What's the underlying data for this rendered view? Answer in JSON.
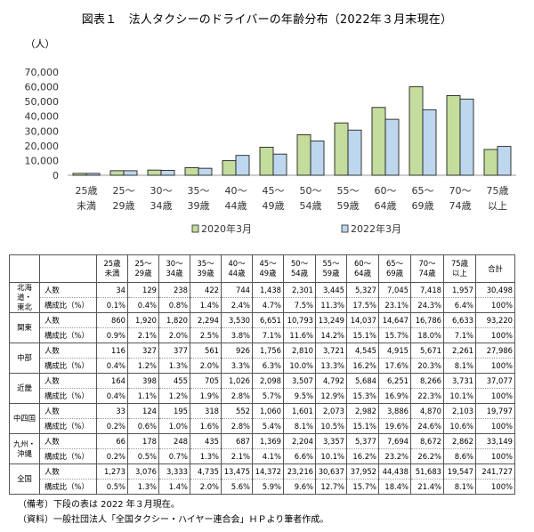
{
  "title": "図表１　法人タクシーのドライバーの年齢分布（2022年３月末現在）",
  "chart_data": {
    "type": "bar",
    "unit_label": "（人）",
    "categories": [
      [
        "25歳",
        "未満"
      ],
      [
        "25～",
        "29歳"
      ],
      [
        "30～",
        "34歳"
      ],
      [
        "35～",
        "39歳"
      ],
      [
        "40～",
        "44歳"
      ],
      [
        "45～",
        "49歳"
      ],
      [
        "50～",
        "54歳"
      ],
      [
        "55～",
        "59歳"
      ],
      [
        "60～",
        "64歳"
      ],
      [
        "65～",
        "69歳"
      ],
      [
        "70～",
        "74歳"
      ],
      [
        "75歳",
        "以上"
      ]
    ],
    "ylim": [
      0,
      70000
    ],
    "yticks": [
      "0",
      "10,000",
      "20,000",
      "30,000",
      "40,000",
      "50,000",
      "60,000",
      "70,000"
    ],
    "grid": false,
    "legend_position": "bottom",
    "series": [
      {
        "name": "2020年3月",
        "color": "#c4dc9c",
        "values": [
          1260,
          3100,
          3520,
          5200,
          9900,
          19000,
          27500,
          35500,
          46000,
          60000,
          54000,
          17500
        ]
      },
      {
        "name": "2022年3月",
        "color": "#bdd7ee",
        "values": [
          1273,
          3076,
          3333,
          4735,
          13475,
          14372,
          23216,
          30637,
          37952,
          44438,
          51683,
          19547
        ]
      }
    ]
  },
  "table": {
    "headers": [
      "",
      "",
      [
        "25歳",
        "未満"
      ],
      [
        "25～",
        "29歳"
      ],
      [
        "30～",
        "34歳"
      ],
      [
        "35～",
        "39歳"
      ],
      [
        "40～",
        "44歳"
      ],
      [
        "45～",
        "49歳"
      ],
      [
        "50～",
        "54歳"
      ],
      [
        "55～",
        "59歳"
      ],
      [
        "60～",
        "64歳"
      ],
      [
        "65～",
        "69歳"
      ],
      [
        "70～",
        "74歳"
      ],
      [
        "75歳",
        "以上"
      ],
      "合計"
    ],
    "regions": [
      {
        "name": [
          "北海道・",
          "東北"
        ],
        "count_label": "人数",
        "count": [
          "34",
          "129",
          "238",
          "422",
          "744",
          "1,438",
          "2,301",
          "3,445",
          "5,327",
          "7,045",
          "7,418",
          "1,957",
          "30,498"
        ],
        "pct_label": "構成比（%）",
        "pct": [
          "0.1%",
          "0.4%",
          "0.8%",
          "1.4%",
          "2.4%",
          "4.7%",
          "7.5%",
          "11.3%",
          "17.5%",
          "23.1%",
          "24.3%",
          "6.4%",
          "100%"
        ]
      },
      {
        "name": [
          "関東"
        ],
        "count_label": "人数",
        "count": [
          "860",
          "1,920",
          "1,820",
          "2,294",
          "3,530",
          "6,651",
          "10,793",
          "13,249",
          "14,037",
          "14,647",
          "16,786",
          "6,633",
          "93,220"
        ],
        "pct_label": "構成比（%）",
        "pct": [
          "0.9%",
          "2.1%",
          "2.0%",
          "2.5%",
          "3.8%",
          "7.1%",
          "11.6%",
          "14.2%",
          "15.1%",
          "15.7%",
          "18.0%",
          "7.1%",
          "100%"
        ]
      },
      {
        "name": [
          "中部"
        ],
        "count_label": "人数",
        "count": [
          "116",
          "327",
          "377",
          "561",
          "926",
          "1,756",
          "2,810",
          "3,721",
          "4,545",
          "4,915",
          "5,671",
          "2,261",
          "27,986"
        ],
        "pct_label": "構成比（%）",
        "pct": [
          "0.4%",
          "1.2%",
          "1.3%",
          "2.0%",
          "3.3%",
          "6.3%",
          "10.0%",
          "13.3%",
          "16.2%",
          "17.6%",
          "20.3%",
          "8.1%",
          "100%"
        ]
      },
      {
        "name": [
          "近畿"
        ],
        "count_label": "人数",
        "count": [
          "164",
          "398",
          "455",
          "705",
          "1,026",
          "2,098",
          "3,507",
          "4,792",
          "5,684",
          "6,251",
          "8,266",
          "3,731",
          "37,077"
        ],
        "pct_label": "構成比（%）",
        "pct": [
          "0.4%",
          "1.1%",
          "1.2%",
          "1.9%",
          "2.8%",
          "5.7%",
          "9.5%",
          "12.9%",
          "15.3%",
          "16.9%",
          "22.3%",
          "10.1%",
          "100%"
        ]
      },
      {
        "name": [
          "中四国"
        ],
        "count_label": "人数",
        "count": [
          "33",
          "124",
          "195",
          "318",
          "552",
          "1,060",
          "1,601",
          "2,073",
          "2,982",
          "3,886",
          "4,870",
          "2,103",
          "19,797"
        ],
        "pct_label": "構成比（%）",
        "pct": [
          "0.2%",
          "0.6%",
          "1.0%",
          "1.6%",
          "2.8%",
          "5.4%",
          "8.1%",
          "10.5%",
          "15.1%",
          "19.6%",
          "24.6%",
          "10.6%",
          "100%"
        ]
      },
      {
        "name": [
          "九州・",
          "沖縄"
        ],
        "count_label": "人数",
        "count": [
          "66",
          "178",
          "248",
          "435",
          "687",
          "1,369",
          "2,204",
          "3,357",
          "5,377",
          "7,694",
          "8,672",
          "2,862",
          "33,149"
        ],
        "pct_label": "構成比（%）",
        "pct": [
          "0.2%",
          "0.5%",
          "0.7%",
          "1.3%",
          "2.1%",
          "4.1%",
          "6.6%",
          "10.1%",
          "16.2%",
          "23.2%",
          "26.2%",
          "8.6%",
          "100%"
        ]
      },
      {
        "name": [
          "全国"
        ],
        "count_label": "人数",
        "count": [
          "1,273",
          "3,076",
          "3,333",
          "4,735",
          "13,475",
          "14,372",
          "23,216",
          "30,637",
          "37,952",
          "44,438",
          "51,683",
          "19,547",
          "241,727"
        ],
        "pct_label": "構成比（%）",
        "pct": [
          "0.5%",
          "1.3%",
          "1.4%",
          "2.0%",
          "5.6%",
          "5.9%",
          "9.6%",
          "12.7%",
          "15.7%",
          "18.4%",
          "21.4%",
          "8.1%",
          "100%"
        ]
      }
    ]
  },
  "notes": {
    "note1": "（備考）下段の表は 2022 年３月現在。",
    "note2": "（資料）一般社団法人「全国タクシー・ハイヤー連合会」ＨＰより筆者作成。"
  }
}
